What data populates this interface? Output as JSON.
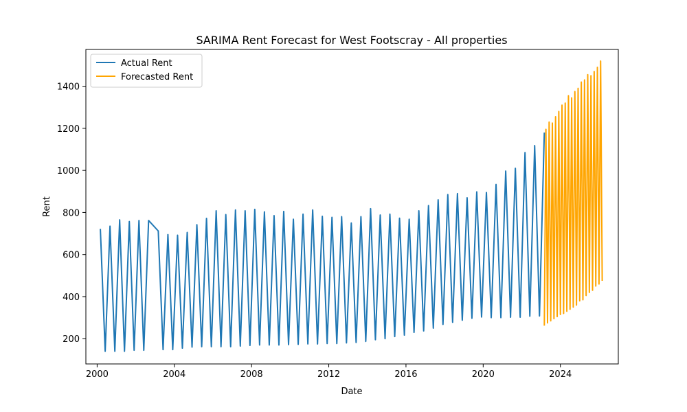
{
  "chart_data": {
    "type": "line",
    "title": "SARIMA Rent Forecast for West Footscray - All properties",
    "xlabel": "Date",
    "ylabel": "Rent",
    "xlim": [
      "1999-06-01",
      "2027-01-01"
    ],
    "ylim": [
      80,
      1575
    ],
    "x_ticks": [
      "2000",
      "2004",
      "2008",
      "2012",
      "2016",
      "2020",
      "2024"
    ],
    "y_ticks": [
      200,
      400,
      600,
      800,
      1000,
      1200,
      1400
    ],
    "legend_position": "upper-left",
    "grid": false,
    "series": [
      {
        "name": "Actual Rent",
        "color": "#1f77b4",
        "x": [
          "2000-03",
          "2000-06",
          "2000-09",
          "2000-12",
          "2001-03",
          "2001-06",
          "2001-09",
          "2001-12",
          "2002-03",
          "2002-06",
          "2002-09",
          "2003-03",
          "2003-06",
          "2003-09",
          "2003-12",
          "2004-03",
          "2004-06",
          "2004-09",
          "2004-12",
          "2005-03",
          "2005-06",
          "2005-09",
          "2005-12",
          "2006-03",
          "2006-06",
          "2006-09",
          "2006-12",
          "2007-03",
          "2007-06",
          "2007-09",
          "2007-12",
          "2008-03",
          "2008-06",
          "2008-09",
          "2008-12",
          "2009-03",
          "2009-06",
          "2009-09",
          "2009-12",
          "2010-03",
          "2010-06",
          "2010-09",
          "2010-12",
          "2011-03",
          "2011-06",
          "2011-09",
          "2011-12",
          "2012-03",
          "2012-06",
          "2012-09",
          "2012-12",
          "2013-03",
          "2013-06",
          "2013-09",
          "2013-12",
          "2014-03",
          "2014-06",
          "2014-09",
          "2014-12",
          "2015-03",
          "2015-06",
          "2015-09",
          "2015-12",
          "2016-03",
          "2016-06",
          "2016-09",
          "2016-12",
          "2017-03",
          "2017-06",
          "2017-09",
          "2017-12",
          "2018-03",
          "2018-06",
          "2018-09",
          "2018-12",
          "2019-03",
          "2019-06",
          "2019-09",
          "2019-12",
          "2020-03",
          "2020-06",
          "2020-09",
          "2020-12",
          "2021-03",
          "2021-06",
          "2021-09",
          "2021-12",
          "2022-03",
          "2022-06",
          "2022-09",
          "2022-12",
          "2023-03"
        ],
        "y": [
          722,
          140,
          735,
          140,
          765,
          140,
          757,
          145,
          762,
          145,
          762,
          712,
          148,
          695,
          148,
          692,
          155,
          705,
          160,
          742,
          162,
          772,
          162,
          808,
          162,
          790,
          162,
          812,
          165,
          808,
          168,
          815,
          170,
          803,
          170,
          785,
          170,
          805,
          172,
          768,
          173,
          792,
          175,
          812,
          175,
          782,
          177,
          777,
          177,
          780,
          180,
          750,
          182,
          780,
          187,
          818,
          195,
          788,
          200,
          792,
          210,
          773,
          217,
          768,
          230,
          808,
          237,
          833,
          250,
          860,
          268,
          885,
          278,
          890,
          288,
          870,
          297,
          898,
          303,
          895,
          300,
          933,
          300,
          997,
          302,
          1010,
          302,
          1085,
          307,
          1118,
          308,
          1180
        ]
      },
      {
        "name": "Forecasted Rent",
        "color": "#ffa500",
        "x": [
          "2023-03",
          "2023-04",
          "2023-05",
          "2023-06",
          "2023-07",
          "2023-08",
          "2023-09",
          "2023-10",
          "2023-11",
          "2023-12",
          "2024-01",
          "2024-02",
          "2024-03",
          "2024-04",
          "2024-05",
          "2024-06",
          "2024-07",
          "2024-08",
          "2024-09",
          "2024-10",
          "2024-11",
          "2024-12",
          "2025-01",
          "2025-02",
          "2025-03",
          "2025-04",
          "2025-05",
          "2025-06",
          "2025-07",
          "2025-08",
          "2025-09",
          "2025-10",
          "2025-11",
          "2025-12",
          "2026-01",
          "2026-02",
          "2026-03"
        ],
        "y": [
          262,
          1195,
          275,
          1230,
          285,
          1225,
          295,
          1255,
          305,
          1280,
          315,
          1310,
          320,
          1320,
          330,
          1355,
          340,
          1345,
          350,
          1375,
          360,
          1390,
          380,
          1420,
          385,
          1430,
          405,
          1455,
          420,
          1450,
          430,
          1470,
          450,
          1490,
          460,
          1520,
          475
        ]
      }
    ]
  }
}
